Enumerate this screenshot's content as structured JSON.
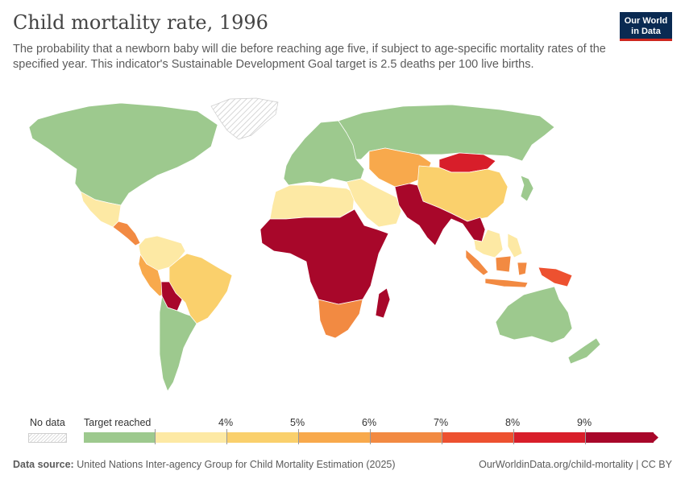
{
  "header": {
    "title": "Child mortality rate, 1996",
    "subtitle": "The probability that a newborn baby will die before reaching age five, if subject to age-specific mortality rates of the specified year. This indicator's Sustainable Development Goal target is 2.5 deaths per 100 live births."
  },
  "logo": {
    "line1": "Our World",
    "line2": "in Data",
    "bg": "#0a2a52",
    "accent": "#ce261e"
  },
  "legend": {
    "no_data_label": "No data",
    "bins": [
      {
        "label": "Target reached",
        "color": "#9dc98e"
      },
      {
        "label": "4%",
        "color": "#fde9a4"
      },
      {
        "label": "5%",
        "color": "#fad06c"
      },
      {
        "label": "6%",
        "color": "#f8a94c"
      },
      {
        "label": "7%",
        "color": "#f28a42"
      },
      {
        "label": "8%",
        "color": "#ed5130"
      },
      {
        "label": "9%",
        "color": "#d81e2a"
      },
      {
        "label": "",
        "color": "#a8072a"
      }
    ]
  },
  "footer": {
    "source_label": "Data source:",
    "source_text": "United Nations Inter-agency Group for Child Mortality Estimation (2025)",
    "url": "OurWorldinData.org/child-mortality | CC BY"
  },
  "map_regions": [
    {
      "name": "Canada & USA",
      "color": "#9dc98e"
    },
    {
      "name": "Mexico",
      "color": "#fde9a4"
    },
    {
      "name": "Central America",
      "color": "#f28a42"
    },
    {
      "name": "Greenland",
      "color": "no-data"
    },
    {
      "name": "Colombia & Venezuela",
      "color": "#fde9a4"
    },
    {
      "name": "Brazil",
      "color": "#fad06c"
    },
    {
      "name": "Peru",
      "color": "#f8a94c"
    },
    {
      "name": "Bolivia",
      "color": "#a8072a"
    },
    {
      "name": "Argentina & Chile",
      "color": "#9dc98e"
    },
    {
      "name": "Europe",
      "color": "#9dc98e"
    },
    {
      "name": "Russia",
      "color": "#9dc98e"
    },
    {
      "name": "North Africa",
      "color": "#fde9a4"
    },
    {
      "name": "Sub-Saharan Africa",
      "color": "#a8072a"
    },
    {
      "name": "Southern Africa",
      "color": "#f28a42"
    },
    {
      "name": "Madagascar",
      "color": "#a8072a"
    },
    {
      "name": "Middle East",
      "color": "#fde9a4"
    },
    {
      "name": "Central Asia",
      "color": "#f8a94c"
    },
    {
      "name": "Mongolia",
      "color": "#d81e2a"
    },
    {
      "name": "China",
      "color": "#fad06c"
    },
    {
      "name": "South Asia",
      "color": "#a8072a"
    },
    {
      "name": "Southeast Asia",
      "color": "#fde9a4"
    },
    {
      "name": "Indonesia",
      "color": "#f28a42"
    },
    {
      "name": "Papua New Guinea",
      "color": "#ed5130"
    },
    {
      "name": "Japan",
      "color": "#9dc98e"
    },
    {
      "name": "Australia",
      "color": "#9dc98e"
    },
    {
      "name": "New Zealand",
      "color": "#9dc98e"
    }
  ]
}
